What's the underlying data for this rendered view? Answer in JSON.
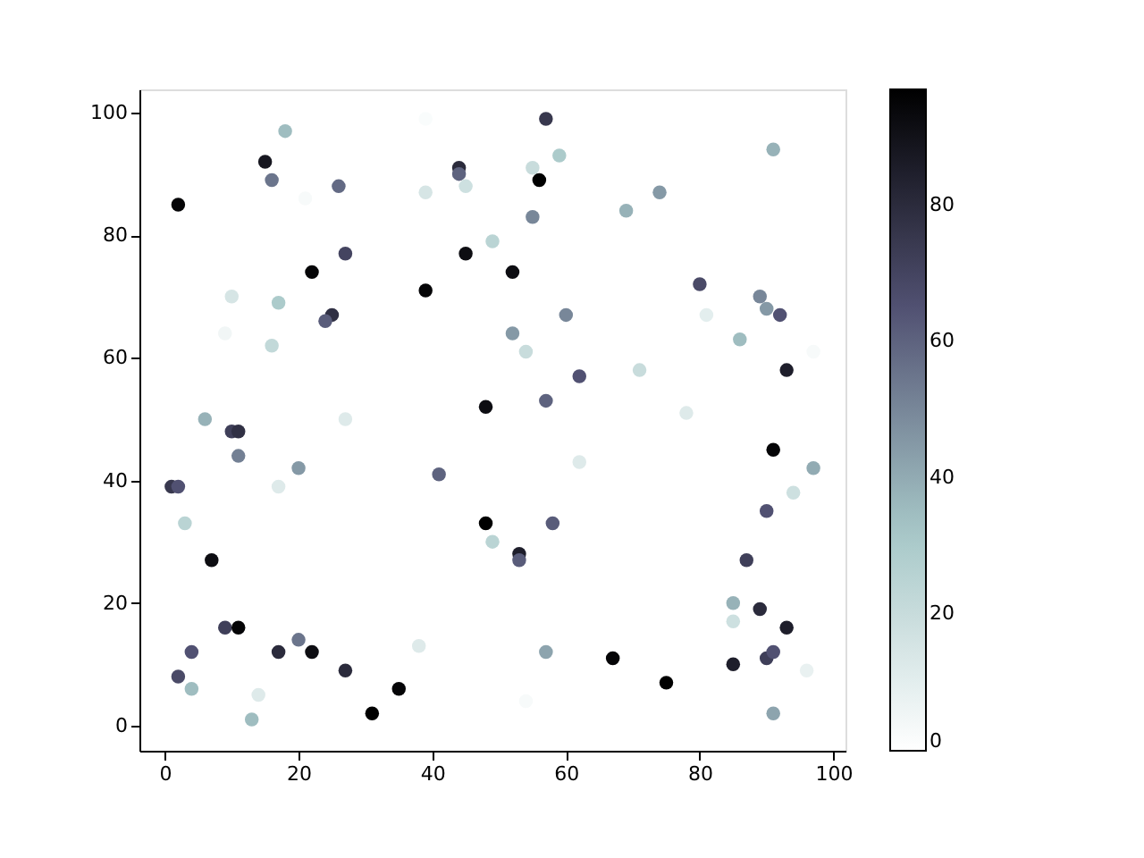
{
  "chart_data": {
    "type": "scatter",
    "marker": "circle",
    "grid": false,
    "xlim": [
      -3.8,
      101.8
    ],
    "ylim": [
      -4.1,
      103.8
    ],
    "xticks": [
      0,
      20,
      40,
      60,
      80,
      100
    ],
    "yticks": [
      0,
      20,
      40,
      60,
      80,
      100
    ],
    "clim": [
      0,
      97
    ],
    "cticks": [
      0,
      20,
      40,
      60,
      80
    ],
    "x": [
      2,
      18,
      15,
      16,
      26,
      21,
      39,
      39,
      44,
      44,
      45,
      45,
      27,
      22,
      10,
      17,
      25,
      24,
      9,
      16,
      39,
      48,
      27,
      6,
      10,
      11,
      11,
      20,
      17,
      41,
      1,
      2,
      3,
      7,
      9,
      11,
      4,
      2,
      4,
      13,
      14,
      17,
      20,
      22,
      27,
      38,
      35,
      31,
      48,
      49,
      53,
      53,
      54,
      57,
      58,
      67,
      75,
      62,
      57,
      62,
      60,
      52,
      54,
      49,
      52,
      57,
      55,
      59,
      56,
      55,
      69,
      74,
      80,
      81,
      86,
      89,
      90,
      92,
      91,
      93,
      97,
      71,
      78,
      91,
      97,
      94,
      90,
      87,
      85,
      85,
      89,
      93,
      90,
      91,
      85,
      96,
      91
    ],
    "values": [
      85,
      97,
      92,
      89,
      88,
      86,
      99,
      87,
      91,
      90,
      88,
      77,
      77,
      74,
      70,
      69,
      67,
      66,
      64,
      62,
      71,
      52,
      50,
      50,
      48,
      48,
      44,
      42,
      39,
      41,
      39,
      39,
      33,
      27,
      16,
      16,
      12,
      8,
      6,
      1,
      5,
      12,
      14,
      12,
      9,
      13,
      6,
      2,
      33,
      30,
      28,
      27,
      4,
      12,
      33,
      11,
      7,
      43,
      53,
      57,
      67,
      64,
      61,
      79,
      74,
      99,
      91,
      93,
      89,
      83,
      84,
      87,
      72,
      67,
      63,
      70,
      68,
      67,
      94,
      58,
      61,
      58,
      51,
      45,
      42,
      38,
      35,
      27,
      20,
      17,
      19,
      16,
      11,
      12,
      10,
      9,
      2
    ],
    "cvalues": [
      95,
      35,
      88,
      55,
      58,
      3,
      2,
      15,
      80,
      60,
      18,
      92,
      70,
      95,
      15,
      30,
      78,
      62,
      5,
      22,
      95,
      92,
      12,
      38,
      72,
      78,
      52,
      45,
      12,
      60,
      75,
      65,
      25,
      92,
      72,
      95,
      65,
      68,
      35,
      35,
      12,
      80,
      55,
      92,
      80,
      12,
      95,
      97,
      97,
      25,
      85,
      62,
      3,
      42,
      62,
      95,
      97,
      12,
      60,
      65,
      50,
      45,
      20,
      25,
      92,
      75,
      20,
      30,
      97,
      50,
      38,
      45,
      68,
      10,
      35,
      50,
      45,
      65,
      38,
      85,
      3,
      20,
      12,
      95,
      40,
      18,
      65,
      72,
      38,
      18,
      80,
      85,
      72,
      65,
      85,
      8,
      42
    ]
  }
}
